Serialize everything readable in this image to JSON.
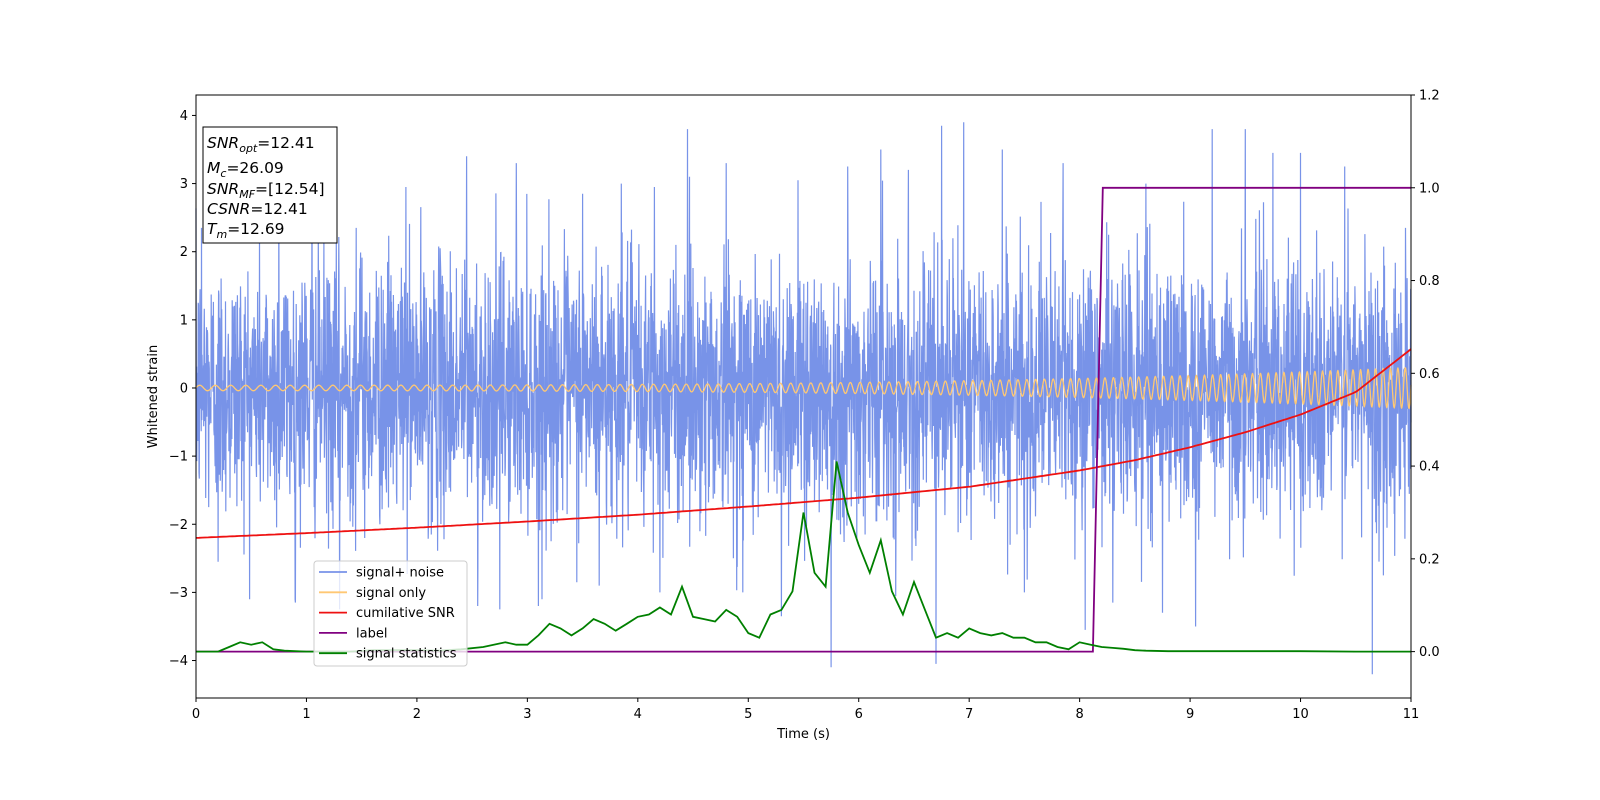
{
  "chart_data": {
    "type": "line",
    "title": "",
    "xlabel": "Time (s)",
    "ylabel": "Whitened strain",
    "xlim": [
      0,
      11
    ],
    "ylim": [
      -4.55,
      4.3
    ],
    "y2lim": [
      -0.1,
      1.2
    ],
    "xticks": [
      0,
      1,
      2,
      3,
      4,
      5,
      6,
      7,
      8,
      9,
      10,
      11
    ],
    "yticks": [
      4,
      3,
      2,
      1,
      0,
      -1,
      -2,
      -3,
      -4
    ],
    "y2ticks": [
      1.2,
      1.0,
      0.8,
      0.6,
      0.4,
      0.2,
      0.0
    ],
    "tick_text": {
      "x": [
        "0",
        "1",
        "2",
        "3",
        "4",
        "5",
        "6",
        "7",
        "8",
        "9",
        "10",
        "11"
      ],
      "y": [
        "4",
        "3",
        "2",
        "1",
        "0",
        "−1",
        "−2",
        "−3",
        "−4"
      ],
      "y2": [
        "1.2",
        "1.0",
        "0.8",
        "0.6",
        "0.4",
        "0.2",
        "0.0"
      ]
    },
    "grid": false,
    "legend_position": "lower-left",
    "series": [
      {
        "name": "signal+ noise",
        "axis": "left",
        "color": "#7893e8",
        "description_kind": "whitened noise time series, amplitude approx ±2.2 with spikes to ±4",
        "noise_sigma": 0.95,
        "peaks": [
          [
            0.05,
            2.35
          ],
          [
            0.2,
            -2.55
          ],
          [
            0.75,
            2.9
          ],
          [
            0.9,
            -3.15
          ],
          [
            1.05,
            3.1
          ],
          [
            1.3,
            -3.25
          ],
          [
            1.45,
            2.35
          ],
          [
            1.9,
            2.95
          ],
          [
            2.45,
            3.4
          ],
          [
            2.55,
            -3.2
          ],
          [
            2.75,
            -3.25
          ],
          [
            2.9,
            3.3
          ],
          [
            3.1,
            -3.2
          ],
          [
            3.5,
            2.85
          ],
          [
            3.65,
            -2.9
          ],
          [
            3.85,
            3.0
          ],
          [
            4.15,
            2.95
          ],
          [
            4.2,
            -3.0
          ],
          [
            4.45,
            3.8
          ],
          [
            4.8,
            3.3
          ],
          [
            4.95,
            -3.0
          ],
          [
            5.3,
            -3.35
          ],
          [
            5.45,
            3.05
          ],
          [
            5.75,
            -4.1
          ],
          [
            5.9,
            3.25
          ],
          [
            6.2,
            3.5
          ],
          [
            6.45,
            3.2
          ],
          [
            6.7,
            -4.05
          ],
          [
            6.75,
            3.85
          ],
          [
            6.95,
            3.9
          ],
          [
            7.3,
            3.5
          ],
          [
            7.5,
            -3.0
          ],
          [
            7.85,
            3.3
          ],
          [
            8.05,
            -3.55
          ],
          [
            8.3,
            -3.15
          ],
          [
            8.6,
            3.0
          ],
          [
            8.75,
            -3.3
          ],
          [
            9.05,
            -3.5
          ],
          [
            9.2,
            3.8
          ],
          [
            9.5,
            3.8
          ],
          [
            9.75,
            3.45
          ],
          [
            10.0,
            3.45
          ],
          [
            10.4,
            3.25
          ],
          [
            10.65,
            -4.2
          ],
          [
            10.75,
            -2.75
          ],
          [
            10.95,
            2.35
          ]
        ]
      },
      {
        "name": "signal only",
        "axis": "left",
        "color": "#ffc873",
        "chirp": {
          "amplitude_start": 0.04,
          "amplitude_end": 0.3,
          "freq_start_hz": 7.0,
          "freq_end_hz": 15.0
        }
      },
      {
        "name": "cumilative SNR",
        "axis": "left",
        "color": "#ee1111",
        "x": [
          0,
          1,
          2,
          3,
          4,
          5,
          6,
          7,
          8,
          8.5,
          9,
          9.5,
          10,
          10.5,
          11
        ],
        "y": [
          -2.2,
          -2.13,
          -2.05,
          -1.96,
          -1.86,
          -1.74,
          -1.61,
          -1.45,
          -1.21,
          -1.06,
          -0.87,
          -0.65,
          -0.39,
          -0.06,
          0.57
        ]
      },
      {
        "name": "label",
        "axis": "right",
        "color": "#800080",
        "x": [
          0,
          8.12,
          8.21,
          11
        ],
        "y": [
          0.0,
          0.0,
          1.0,
          1.0
        ]
      },
      {
        "name": "signal statistics",
        "axis": "right",
        "color": "#008000",
        "x": [
          0,
          0.1,
          0.2,
          0.3,
          0.4,
          0.5,
          0.6,
          0.7,
          0.8,
          1.0,
          1.2,
          1.4,
          1.6,
          1.8,
          2.0,
          2.2,
          2.4,
          2.6,
          2.8,
          2.9,
          3.0,
          3.1,
          3.2,
          3.3,
          3.4,
          3.5,
          3.6,
          3.7,
          3.8,
          3.9,
          4.0,
          4.1,
          4.2,
          4.3,
          4.4,
          4.5,
          4.6,
          4.7,
          4.8,
          4.9,
          5.0,
          5.1,
          5.2,
          5.3,
          5.4,
          5.5,
          5.6,
          5.7,
          5.8,
          5.9,
          6.0,
          6.1,
          6.2,
          6.3,
          6.4,
          6.5,
          6.6,
          6.7,
          6.8,
          6.9,
          7.0,
          7.1,
          7.2,
          7.3,
          7.4,
          7.5,
          7.6,
          7.7,
          7.8,
          7.9,
          8.0,
          8.1,
          8.2,
          8.3,
          8.4,
          8.5,
          8.6,
          8.8,
          9.0,
          9.5,
          10.0,
          10.5,
          11.0
        ],
        "y": [
          0.0,
          0.0,
          0.0,
          0.01,
          0.02,
          0.015,
          0.02,
          0.005,
          0.002,
          0.0,
          0.0,
          0.0,
          0.003,
          0.003,
          0.003,
          0.002,
          0.005,
          0.01,
          0.02,
          0.015,
          0.015,
          0.035,
          0.06,
          0.05,
          0.035,
          0.05,
          0.07,
          0.06,
          0.045,
          0.06,
          0.075,
          0.08,
          0.095,
          0.08,
          0.14,
          0.075,
          0.07,
          0.065,
          0.09,
          0.075,
          0.04,
          0.03,
          0.08,
          0.09,
          0.13,
          0.3,
          0.17,
          0.14,
          0.41,
          0.3,
          0.23,
          0.17,
          0.24,
          0.13,
          0.08,
          0.15,
          0.09,
          0.03,
          0.04,
          0.03,
          0.05,
          0.04,
          0.035,
          0.04,
          0.03,
          0.03,
          0.02,
          0.02,
          0.01,
          0.005,
          0.02,
          0.015,
          0.01,
          0.008,
          0.006,
          0.003,
          0.002,
          0.001,
          0.001,
          0.001,
          0.001,
          0.0,
          0.0
        ]
      }
    ],
    "annotation": {
      "lines": [
        {
          "main": "SNR",
          "sub": "opt",
          "rest": "=12.41"
        },
        {
          "main": "M",
          "sub": "c",
          "rest": "=26.09"
        },
        {
          "main": "SNR",
          "sub": "MF",
          "rest": "=[12.54]"
        },
        {
          "main": "CSNR",
          "sub": "",
          "rest": "=12.41"
        },
        {
          "main": "T",
          "sub": "m",
          "rest": "=12.69"
        }
      ]
    }
  }
}
